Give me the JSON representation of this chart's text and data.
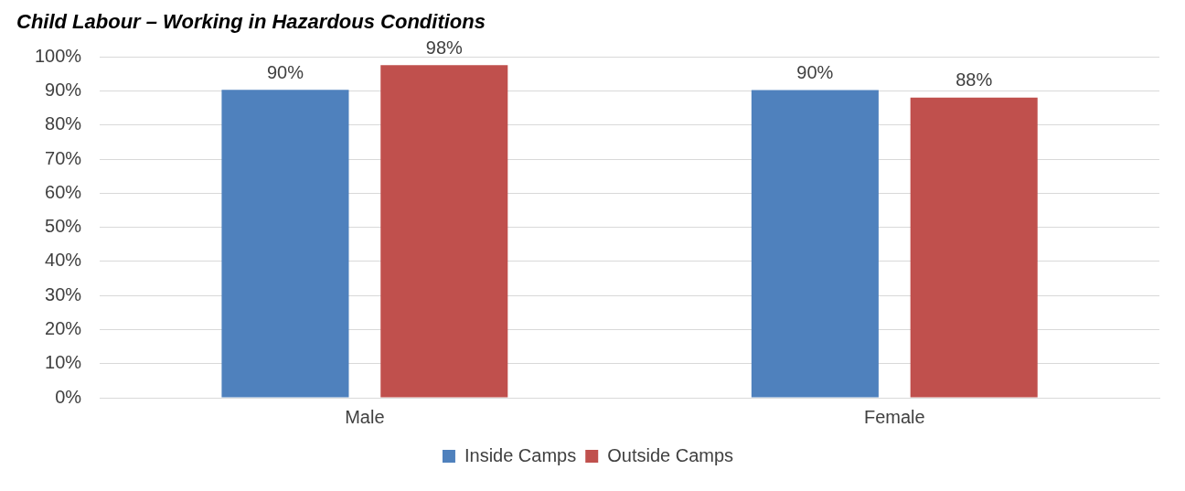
{
  "chart_data": {
    "type": "bar",
    "title": "Child Labour – Working in Hazardous Conditions",
    "categories": [
      "Male",
      "Female"
    ],
    "series": [
      {
        "name": "Inside Camps",
        "color": "#4f81bd",
        "values": [
          90.4,
          90.3
        ],
        "value_labels": [
          "90%",
          "90%"
        ]
      },
      {
        "name": "Outside Camps",
        "color": "#c0504d",
        "values": [
          97.6,
          88.1
        ],
        "value_labels": [
          "98%",
          "88%"
        ]
      }
    ],
    "ylim": [
      0,
      100
    ],
    "yticks": [
      {
        "value": 0,
        "label": "0%"
      },
      {
        "value": 10,
        "label": "10%"
      },
      {
        "value": 20,
        "label": "20%"
      },
      {
        "value": 30,
        "label": "30%"
      },
      {
        "value": 40,
        "label": "40%"
      },
      {
        "value": 50,
        "label": "50%"
      },
      {
        "value": 60,
        "label": "60%"
      },
      {
        "value": 70,
        "label": "70%"
      },
      {
        "value": 80,
        "label": "80%"
      },
      {
        "value": 90,
        "label": "90%"
      },
      {
        "value": 100,
        "label": "100%"
      }
    ],
    "grid": "y",
    "legend": "bottom"
  }
}
